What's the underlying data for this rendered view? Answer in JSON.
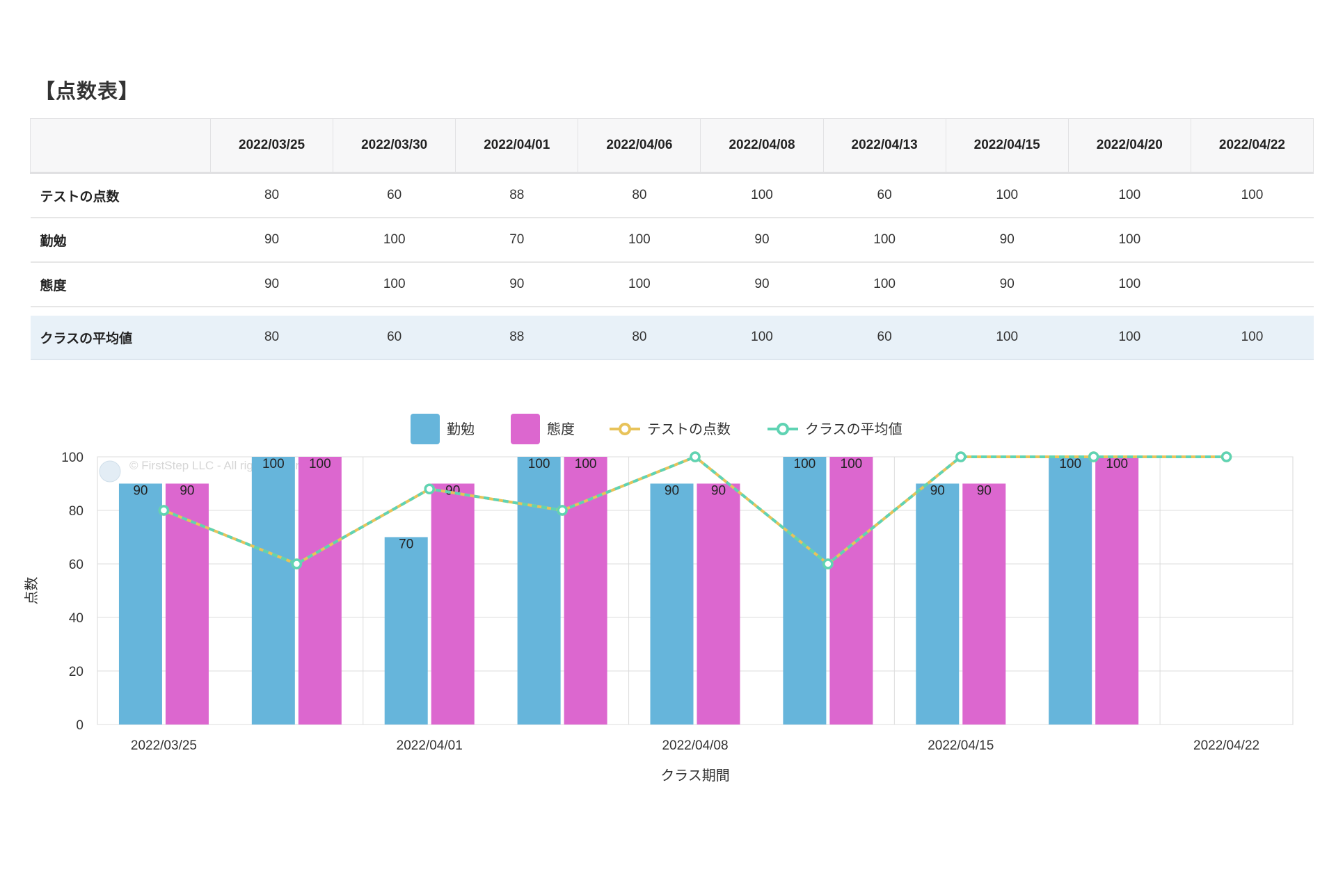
{
  "page_title": "【点数表】",
  "table": {
    "dates": [
      "2022/03/25",
      "2022/03/30",
      "2022/04/01",
      "2022/04/06",
      "2022/04/08",
      "2022/04/13",
      "2022/04/15",
      "2022/04/20",
      "2022/04/22"
    ],
    "rows": [
      {
        "label": "テストの点数",
        "values": [
          "80",
          "60",
          "88",
          "80",
          "100",
          "60",
          "100",
          "100",
          "100"
        ]
      },
      {
        "label": "勤勉",
        "values": [
          "90",
          "100",
          "70",
          "100",
          "90",
          "100",
          "90",
          "100",
          ""
        ]
      },
      {
        "label": "態度",
        "values": [
          "90",
          "100",
          "90",
          "100",
          "90",
          "100",
          "90",
          "100",
          ""
        ]
      }
    ],
    "average_row": {
      "label": "クラスの平均値",
      "values": [
        "80",
        "60",
        "88",
        "80",
        "100",
        "60",
        "100",
        "100",
        "100"
      ]
    }
  },
  "chart_data": {
    "type": "bar",
    "categories": [
      "2022/03/25",
      "2022/03/30",
      "2022/04/01",
      "2022/04/06",
      "2022/04/08",
      "2022/04/13",
      "2022/04/15",
      "2022/04/20",
      "2022/04/22"
    ],
    "x_tick_labels": [
      "2022/03/25",
      "",
      "2022/04/01",
      "",
      "2022/04/08",
      "",
      "2022/04/15",
      "",
      "2022/04/22"
    ],
    "series": [
      {
        "name": "勤勉",
        "kind": "bar",
        "color": "#66b5db",
        "values": [
          90,
          100,
          70,
          100,
          90,
          100,
          90,
          100,
          null
        ]
      },
      {
        "name": "態度",
        "kind": "bar",
        "color": "#dc67cf",
        "values": [
          90,
          100,
          90,
          100,
          90,
          100,
          90,
          100,
          null
        ]
      },
      {
        "name": "テストの点数",
        "kind": "line",
        "color": "#e8c35a",
        "values": [
          80,
          60,
          88,
          80,
          100,
          60,
          100,
          100,
          100
        ]
      },
      {
        "name": "クラスの平均値",
        "kind": "line",
        "color": "#5fd3b3",
        "values": [
          80,
          60,
          88,
          80,
          100,
          60,
          100,
          100,
          100
        ]
      }
    ],
    "ylabel": "点数",
    "xlabel": "クラス期間",
    "ylim": [
      0,
      100
    ],
    "yticks": [
      0,
      20,
      40,
      60,
      80,
      100
    ],
    "grid": true,
    "legend_position": "top-center",
    "watermark": "© FirstStep LLC - All rights reserved"
  }
}
